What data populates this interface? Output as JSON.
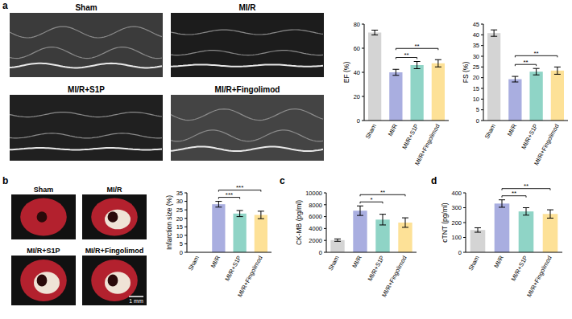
{
  "panel_labels": [
    "a",
    "b",
    "c",
    "d"
  ],
  "echo_images": [
    "Sham",
    "MI/R",
    "MI/R+S1P",
    "MI/R+Fingolimod"
  ],
  "heart_images": [
    "Sham",
    "MI/R",
    "MI/R+S1P",
    "MI/R+Fingolimod"
  ],
  "scale_bar": "1 mm",
  "chart_data": [
    {
      "type": "bar",
      "y_label": "EF (%)",
      "categories": [
        "Sham",
        "MI/R",
        "MI/R+S1P",
        "MI/R+Fingolimod"
      ],
      "values": [
        73,
        40,
        46,
        47.5
      ],
      "errors": [
        2,
        2.5,
        3,
        3
      ],
      "colors": [
        "#d4d4d4",
        "#a9aee0",
        "#8fd4c6",
        "#fde197"
      ],
      "ylim": [
        0,
        80
      ],
      "yticks": [
        0,
        20,
        40,
        60,
        80
      ],
      "significance": [
        {
          "pair": [
            1,
            2
          ],
          "label": "**"
        },
        {
          "pair": [
            1,
            3
          ],
          "label": "**"
        }
      ]
    },
    {
      "type": "bar",
      "y_label": "FS (%)",
      "categories": [
        "Sham",
        "MI/R",
        "MI/R+S1P",
        "MI/R+Fingolimod"
      ],
      "values": [
        40.8,
        19.3,
        22.8,
        23.3
      ],
      "errors": [
        1.5,
        1.3,
        1.5,
        1.7
      ],
      "colors": [
        "#d4d4d4",
        "#a9aee0",
        "#8fd4c6",
        "#fde197"
      ],
      "ylim": [
        0,
        45
      ],
      "yticks": [
        0,
        5,
        10,
        15,
        20,
        25,
        30,
        35,
        40,
        45
      ],
      "significance": [
        {
          "pair": [
            1,
            2
          ],
          "label": "**"
        },
        {
          "pair": [
            1,
            3
          ],
          "label": "**"
        }
      ]
    },
    {
      "type": "bar",
      "y_label": "Infarction size (%)",
      "categories": [
        "Sham",
        "MI/R",
        "MI/R+S1P",
        "MI/R+Fingolimod"
      ],
      "values": [
        0,
        28.3,
        22.8,
        22
      ],
      "errors": [
        0,
        1.7,
        1.8,
        2.2
      ],
      "colors": [
        "#d4d4d4",
        "#a9aee0",
        "#8fd4c6",
        "#fde197"
      ],
      "ylim": [
        0,
        35
      ],
      "yticks": [
        0,
        5,
        10,
        15,
        20,
        25,
        30,
        35
      ],
      "significance": [
        {
          "pair": [
            1,
            2
          ],
          "label": "***"
        },
        {
          "pair": [
            1,
            3
          ],
          "label": "***"
        }
      ]
    },
    {
      "type": "bar",
      "y_label": "CK-MB (pg/ml)",
      "categories": [
        "Sham",
        "MI/R",
        "MI/R+S1P",
        "MI/R+Fingolimod"
      ],
      "values": [
        2050,
        7000,
        5500,
        5000
      ],
      "errors": [
        200,
        800,
        900,
        800
      ],
      "colors": [
        "#d4d4d4",
        "#a9aee0",
        "#8fd4c6",
        "#fde197"
      ],
      "ylim": [
        0,
        10000
      ],
      "yticks": [
        0,
        2000,
        4000,
        6000,
        8000,
        10000
      ],
      "significance": [
        {
          "pair": [
            1,
            2
          ],
          "label": "*"
        },
        {
          "pair": [
            1,
            3
          ],
          "label": "**"
        }
      ]
    },
    {
      "type": "bar",
      "y_label": "cTNT (pg/ml)",
      "categories": [
        "Sham",
        "MI/R",
        "MI/R+S1P",
        "MI/R+Fingolimod"
      ],
      "values": [
        150,
        328,
        275,
        258
      ],
      "errors": [
        15,
        25,
        25,
        28
      ],
      "colors": [
        "#d4d4d4",
        "#a9aee0",
        "#8fd4c6",
        "#fde197"
      ],
      "ylim": [
        0,
        400
      ],
      "yticks": [
        0,
        100,
        200,
        300,
        400
      ],
      "significance": [
        {
          "pair": [
            1,
            2
          ],
          "label": "**"
        },
        {
          "pair": [
            1,
            3
          ],
          "label": "**"
        }
      ]
    }
  ]
}
